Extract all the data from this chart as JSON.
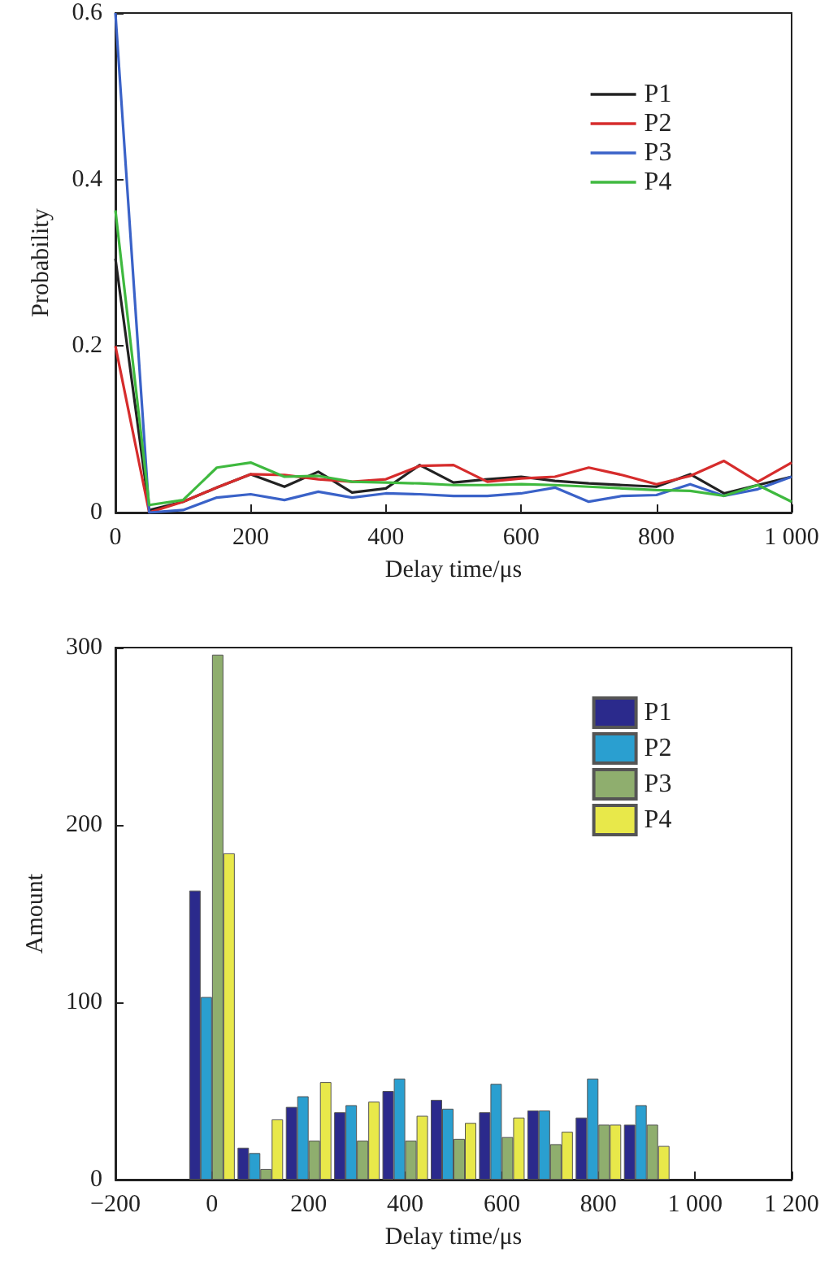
{
  "chart_data": [
    {
      "type": "line",
      "xlabel": "Delay time/μs",
      "ylabel": "Probability",
      "x": [
        0,
        50,
        100,
        150,
        200,
        250,
        300,
        350,
        400,
        450,
        500,
        550,
        600,
        650,
        700,
        750,
        800,
        850,
        900,
        950,
        1000
      ],
      "series": [
        {
          "name": "P1",
          "color": "#222222",
          "values": [
            0.305,
            0.003,
            0.013,
            0.03,
            0.046,
            0.031,
            0.049,
            0.024,
            0.029,
            0.057,
            0.036,
            0.04,
            0.043,
            0.038,
            0.035,
            0.033,
            0.031,
            0.046,
            0.023,
            0.033,
            0.043
          ]
        },
        {
          "name": "P2",
          "color": "#d62c2c",
          "values": [
            0.2,
            0.0,
            0.013,
            0.03,
            0.046,
            0.045,
            0.04,
            0.037,
            0.04,
            0.056,
            0.057,
            0.037,
            0.041,
            0.043,
            0.054,
            0.045,
            0.034,
            0.044,
            0.062,
            0.037,
            0.06
          ]
        },
        {
          "name": "P3",
          "color": "#3a62c8",
          "values": [
            0.6,
            0.0,
            0.003,
            0.018,
            0.022,
            0.015,
            0.025,
            0.018,
            0.023,
            0.022,
            0.02,
            0.02,
            0.023,
            0.03,
            0.013,
            0.02,
            0.021,
            0.034,
            0.02,
            0.028,
            0.043
          ]
        },
        {
          "name": "P4",
          "color": "#3fb93f",
          "values": [
            0.363,
            0.009,
            0.015,
            0.054,
            0.06,
            0.043,
            0.044,
            0.037,
            0.036,
            0.035,
            0.033,
            0.033,
            0.034,
            0.033,
            0.031,
            0.029,
            0.027,
            0.026,
            0.02,
            0.033,
            0.013
          ]
        }
      ],
      "xlim": [
        0,
        1000
      ],
      "xticks": [
        0,
        200,
        400,
        600,
        800,
        {
          "value": 1000,
          "label": "1 000"
        }
      ],
      "ylim": [
        0,
        0.6
      ],
      "yticks": [
        0,
        0.2,
        0.4,
        0.6
      ],
      "legend": "top right",
      "marker": "none",
      "line_style": "solid",
      "grid": false
    },
    {
      "type": "bar",
      "xlabel": "Delay time/μs",
      "ylabel": "Amount",
      "x": [
        0,
        100,
        200,
        300,
        400,
        500,
        600,
        700,
        800,
        900
      ],
      "series": [
        {
          "name": "P1",
          "color": "#2b2a8c",
          "values": [
            163,
            18,
            41,
            38,
            50,
            45,
            38,
            39,
            35,
            31
          ]
        },
        {
          "name": "P2",
          "color": "#2a9fd0",
          "values": [
            103,
            15,
            47,
            42,
            57,
            40,
            54,
            39,
            57,
            42
          ]
        },
        {
          "name": "P3",
          "color": "#8fae6e",
          "values": [
            296,
            6,
            22,
            22,
            22,
            23,
            24,
            20,
            31,
            31
          ]
        },
        {
          "name": "P4",
          "color": "#e8e84a",
          "values": [
            184,
            34,
            55,
            44,
            36,
            32,
            35,
            27,
            31,
            19
          ]
        }
      ],
      "xlim": [
        -200,
        1200
      ],
      "xticks": [
        {
          "value": -200,
          "label": "−200"
        },
        0,
        200,
        400,
        600,
        800,
        {
          "value": 1000,
          "label": "1 000"
        },
        {
          "value": 1200,
          "label": "1 200"
        }
      ],
      "ylim": [
        0,
        300
      ],
      "yticks": [
        0,
        100,
        200,
        300
      ],
      "legend": "top right",
      "grid": false
    }
  ]
}
